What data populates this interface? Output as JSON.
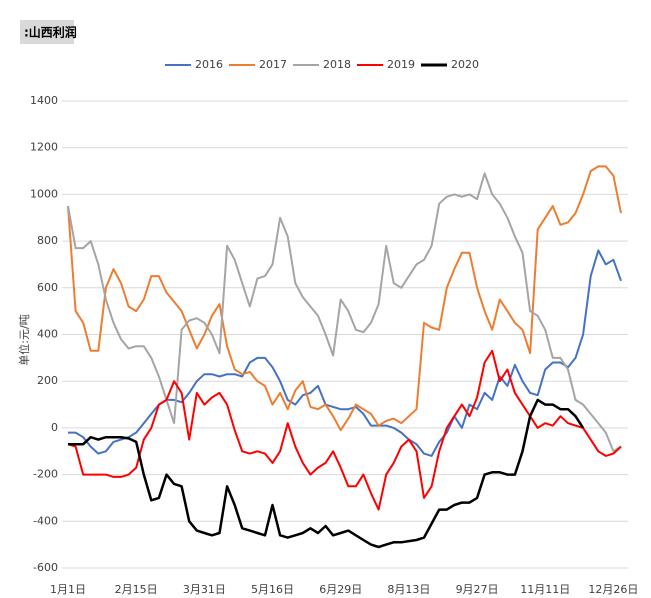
{
  "chart_data": {
    "type": "line",
    "title": ":山西利润",
    "y_label": "单位:元/吨",
    "categories": [
      "1月1日",
      null,
      null,
      null,
      null,
      null,
      null,
      null,
      null,
      "2月15日",
      null,
      null,
      null,
      null,
      null,
      null,
      null,
      null,
      "3月31日",
      null,
      null,
      null,
      null,
      null,
      null,
      null,
      null,
      "5月16日",
      null,
      null,
      null,
      null,
      null,
      null,
      null,
      null,
      "6月29日",
      null,
      null,
      null,
      null,
      null,
      null,
      null,
      null,
      "8月13日",
      null,
      null,
      null,
      null,
      null,
      null,
      null,
      null,
      "9月27日",
      null,
      null,
      null,
      null,
      null,
      null,
      null,
      null,
      "11月11日",
      null,
      null,
      null,
      null,
      null,
      null,
      null,
      null,
      "12月26日",
      null
    ],
    "ylim": [
      -600,
      1400
    ],
    "yticks": [
      -600,
      -400,
      -200,
      0,
      200,
      400,
      600,
      800,
      1000,
      1200,
      1400
    ],
    "grid": true,
    "legend": "top",
    "series": [
      {
        "name": "2016",
        "color": "#4472c4",
        "values": [
          -20,
          -20,
          -40,
          -80,
          -110,
          -100,
          -60,
          -50,
          -40,
          -20,
          20,
          60,
          100,
          120,
          120,
          110,
          150,
          200,
          230,
          230,
          220,
          230,
          230,
          220,
          280,
          300,
          300,
          260,
          200,
          120,
          100,
          140,
          150,
          180,
          100,
          90,
          80,
          80,
          90,
          60,
          10,
          10,
          10,
          0,
          -20,
          -50,
          -70,
          -110,
          -120,
          -60,
          -20,
          50,
          0,
          100,
          80,
          150,
          120,
          220,
          180,
          270,
          200,
          150,
          140,
          250,
          280,
          280,
          260,
          300,
          400,
          650,
          760,
          700,
          720,
          630
        ]
      },
      {
        "name": "2017",
        "color": "#ed7d31",
        "values": [
          950,
          500,
          450,
          330,
          330,
          600,
          680,
          620,
          520,
          500,
          550,
          650,
          650,
          580,
          540,
          500,
          420,
          340,
          400,
          480,
          530,
          350,
          250,
          230,
          240,
          200,
          180,
          100,
          150,
          80,
          160,
          200,
          90,
          80,
          100,
          50,
          -10,
          40,
          100,
          80,
          60,
          10,
          30,
          40,
          20,
          50,
          80,
          450,
          430,
          420,
          600,
          680,
          750,
          750,
          600,
          500,
          420,
          550,
          500,
          450,
          420,
          320,
          850,
          900,
          950,
          870,
          880,
          920,
          1000,
          1100,
          1120,
          1120,
          1080,
          920
        ]
      },
      {
        "name": "2018",
        "color": "#a5a5a5",
        "values": [
          950,
          770,
          770,
          800,
          700,
          550,
          450,
          380,
          340,
          350,
          350,
          300,
          220,
          120,
          20,
          420,
          460,
          470,
          450,
          400,
          320,
          780,
          720,
          620,
          520,
          640,
          650,
          700,
          900,
          820,
          620,
          560,
          520,
          480,
          400,
          310,
          550,
          500,
          420,
          410,
          450,
          530,
          780,
          620,
          600,
          650,
          700,
          720,
          780,
          960,
          990,
          1000,
          990,
          1000,
          980,
          1090,
          1000,
          960,
          900,
          820,
          750,
          500,
          480,
          420,
          300,
          300,
          250,
          120,
          100,
          60,
          20,
          -20,
          -100,
          -80
        ]
      },
      {
        "name": "2019",
        "color": "#ff0000",
        "values": [
          -70,
          -80,
          -200,
          -200,
          -200,
          -200,
          -210,
          -210,
          -200,
          -170,
          -50,
          0,
          100,
          120,
          200,
          150,
          -50,
          150,
          100,
          130,
          150,
          100,
          -10,
          -100,
          -110,
          -100,
          -110,
          -150,
          -100,
          20,
          -80,
          -150,
          -200,
          -170,
          -150,
          -100,
          -170,
          -250,
          -250,
          -200,
          -280,
          -350,
          -200,
          -150,
          -80,
          -50,
          -100,
          -300,
          -250,
          -100,
          0,
          50,
          100,
          50,
          130,
          280,
          330,
          200,
          250,
          150,
          100,
          50,
          0,
          20,
          10,
          50,
          20,
          10,
          0,
          -50,
          -100,
          -120,
          -110,
          -80
        ]
      },
      {
        "name": "2020",
        "color": "#000000",
        "values": [
          -70,
          -70,
          -70,
          -40,
          -50,
          -40,
          -40,
          -40,
          -45,
          -60,
          -200,
          -310,
          -300,
          -200,
          -240,
          -250,
          -400,
          -440,
          -450,
          -460,
          -450,
          -250,
          -330,
          -430,
          -440,
          -450,
          -460,
          -330,
          -460,
          -470,
          -460,
          -450,
          -430,
          -450,
          -420,
          -460,
          -450,
          -440,
          -460,
          -480,
          -500,
          -510,
          -500,
          -490,
          -490,
          -485,
          -480,
          -470,
          -410,
          -350,
          -350,
          -330,
          -320,
          -320,
          -300,
          -200,
          -190,
          -190,
          -200,
          -200,
          -100,
          50,
          120,
          100,
          100,
          80,
          80,
          50,
          0,
          null,
          null,
          null,
          null,
          null
        ]
      }
    ]
  }
}
